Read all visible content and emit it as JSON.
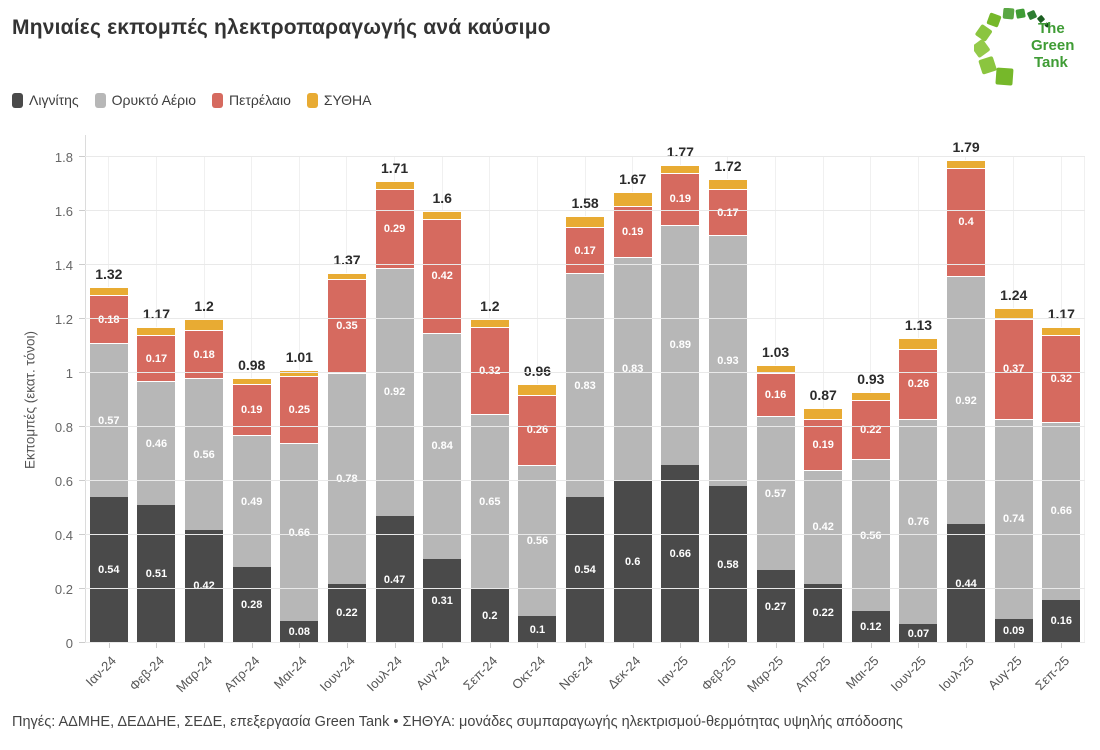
{
  "title": "Μηνιαίες εκπομπές ηλεκτροπαραγωγής ανά καύσιμο",
  "logo": {
    "line1": "The",
    "line2": "Green",
    "line3": "Tank"
  },
  "footer": "Πηγές: ΑΔΜΗΕ, ΔΕΔΔΗΕ, ΣΕΔΕ, επεξεργασία Green Tank • ΣΗΘΥΑ: μονάδες συμπαραγωγής ηλεκτρισμού-θερμότητας υψηλής απόδοσης",
  "chart_data": {
    "type": "bar",
    "stacked": true,
    "title": "Μηνιαίες εκπομπές ηλεκτροπαραγωγής ανά καύσιμο",
    "ylabel": "Εκπομπές (εκατ. τόνοι)",
    "ylim": [
      0,
      1.8
    ],
    "yticks": [
      0,
      0.2,
      0.4,
      0.6,
      0.8,
      1,
      1.2,
      1.4,
      1.6,
      1.8
    ],
    "ytick_labels": [
      "0",
      "0.2",
      "0.4",
      "0.6",
      "0.8",
      "1",
      "1.2",
      "1.4",
      "1.6",
      "1.8"
    ],
    "grid": "horizontal",
    "legend_position": "top-left",
    "categories": [
      "Ιαν-24",
      "Φεβ-24",
      "Μαρ-24",
      "Απρ-24",
      "Μαι-24",
      "Ιουν-24",
      "Ιουλ-24",
      "Αυγ-24",
      "Σεπ-24",
      "Οκτ-24",
      "Νοε-24",
      "Δεκ-24",
      "Ιαν-25",
      "Φεβ-25",
      "Μαρ-25",
      "Απρ-25",
      "Μαι-25",
      "Ιουν-25",
      "Ιουλ-25",
      "Αυγ-25",
      "Σεπ-25"
    ],
    "series": [
      {
        "name": "Λιγνίτης",
        "color": "#4a4a4a",
        "values": [
          0.54,
          0.51,
          0.42,
          0.28,
          0.08,
          0.22,
          0.47,
          0.31,
          0.2,
          0.1,
          0.54,
          0.6,
          0.66,
          0.58,
          0.27,
          0.22,
          0.12,
          0.07,
          0.44,
          0.09,
          0.16
        ]
      },
      {
        "name": "Ορυκτό Αέριο",
        "color": "#b7b7b7",
        "values": [
          0.57,
          0.46,
          0.56,
          0.49,
          0.66,
          0.78,
          0.92,
          0.84,
          0.65,
          0.56,
          0.83,
          0.83,
          0.89,
          0.93,
          0.57,
          0.42,
          0.56,
          0.76,
          0.92,
          0.74,
          0.66
        ]
      },
      {
        "name": "Πετρέλαιο",
        "color": "#d66a5f",
        "values": [
          0.18,
          0.17,
          0.18,
          0.19,
          0.25,
          0.35,
          0.29,
          0.42,
          0.32,
          0.26,
          0.17,
          0.19,
          0.19,
          0.17,
          0.16,
          0.19,
          0.22,
          0.26,
          0.4,
          0.37,
          0.32
        ]
      },
      {
        "name": "ΣΥΘΗΑ",
        "color": "#e8ab33",
        "values": [
          0.03,
          0.03,
          0.04,
          0.02,
          0.02,
          0.02,
          0.03,
          0.03,
          0.03,
          0.04,
          0.04,
          0.05,
          0.03,
          0.04,
          0.03,
          0.04,
          0.03,
          0.04,
          0.03,
          0.04,
          0.03
        ]
      }
    ],
    "totals": [
      "1.32",
      "1.17",
      "1.2",
      "0.98",
      "1.01",
      "1.37",
      "1.71",
      "1.6",
      "1.2",
      "0.96",
      "1.58",
      "1.67",
      "1.77",
      "1.72",
      "1.03",
      "0.87",
      "0.93",
      "1.13",
      "1.79",
      "1.24",
      "1.17"
    ]
  }
}
